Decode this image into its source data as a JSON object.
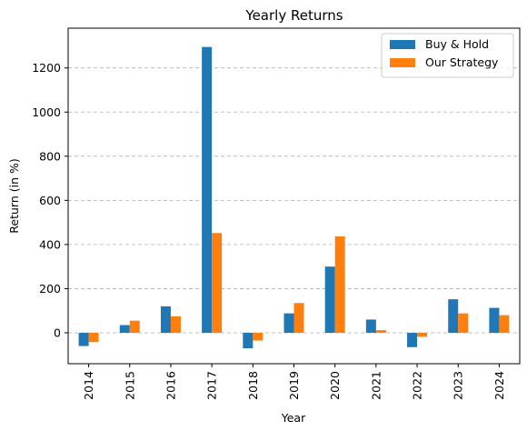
{
  "chart_data": {
    "type": "bar",
    "title": "Yearly Returns",
    "xlabel": "Year",
    "ylabel": "Return (in %)",
    "categories": [
      "2014",
      "2015",
      "2016",
      "2017",
      "2018",
      "2019",
      "2020",
      "2021",
      "2022",
      "2023",
      "2024"
    ],
    "series": [
      {
        "name": "Buy & Hold",
        "color": "#1f77b4",
        "values": [
          -60,
          35,
          120,
          1295,
          -70,
          88,
          300,
          60,
          -65,
          152,
          113
        ]
      },
      {
        "name": "Our Strategy",
        "color": "#ff7f0e",
        "values": [
          -42,
          55,
          75,
          452,
          -35,
          135,
          437,
          12,
          -18,
          88,
          80
        ]
      }
    ],
    "ylim": [
      -140,
      1380
    ],
    "yticks": [
      0,
      200,
      400,
      600,
      800,
      1000,
      1200
    ],
    "grid": "horizontal dashed",
    "legend_position": "top-right"
  }
}
